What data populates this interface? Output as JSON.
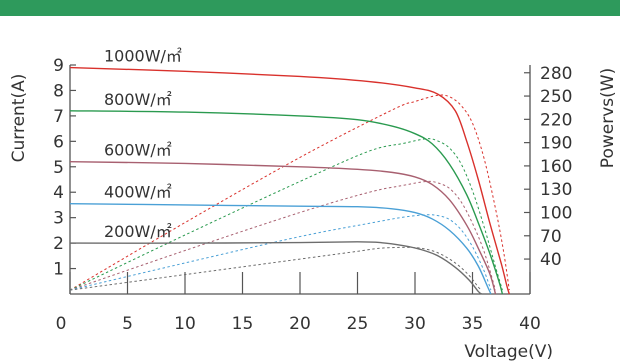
{
  "colors": {
    "banner": "#2e9a5c",
    "axis": "#555555"
  },
  "chart_data": {
    "type": "line",
    "xlabel": "Voltage(V)",
    "ylabel": "Current(A)",
    "y2label": "Powervs(W)",
    "xlim": [
      0,
      40
    ],
    "ylim": [
      0,
      9
    ],
    "y2lim": [
      -5,
      290
    ],
    "x_ticks": [
      "0",
      "5",
      "10",
      "15",
      "20",
      "25",
      "30",
      "35",
      "40"
    ],
    "y_ticks": [
      "1",
      "2",
      "3",
      "4",
      "5",
      "6",
      "7",
      "8",
      "9"
    ],
    "y2_ticks": [
      "40",
      "70",
      "100",
      "130",
      "160",
      "190",
      "220",
      "250",
      "280"
    ],
    "grid": false,
    "series": [
      {
        "name": "1000W/㎡",
        "color": "#d9312c",
        "current": [
          [
            0,
            8.9
          ],
          [
            10,
            8.75
          ],
          [
            20,
            8.55
          ],
          [
            26,
            8.35
          ],
          [
            30,
            8.1
          ],
          [
            32,
            7.85
          ],
          [
            33.5,
            7.2
          ],
          [
            34.5,
            6.0
          ],
          [
            35.5,
            4.5
          ],
          [
            36.5,
            2.8
          ],
          [
            37.5,
            1.2
          ],
          [
            38,
            0.3
          ],
          [
            38.2,
            0
          ]
        ],
        "power": [
          [
            0,
            0
          ],
          [
            10,
            87
          ],
          [
            20,
            171
          ],
          [
            28,
            232
          ],
          [
            30,
            243
          ],
          [
            32,
            251
          ],
          [
            33,
            249
          ],
          [
            34,
            238
          ],
          [
            35,
            215
          ],
          [
            36,
            170
          ],
          [
            37,
            105
          ],
          [
            37.7,
            50
          ],
          [
            38.2,
            0
          ]
        ]
      },
      {
        "name": "800W/㎡",
        "color": "#2a9a4f",
        "current": [
          [
            0,
            7.2
          ],
          [
            10,
            7.15
          ],
          [
            20,
            7.0
          ],
          [
            25,
            6.85
          ],
          [
            28,
            6.6
          ],
          [
            30,
            6.3
          ],
          [
            31.5,
            5.9
          ],
          [
            33,
            5.1
          ],
          [
            34.5,
            3.9
          ],
          [
            35.5,
            2.8
          ],
          [
            36.5,
            1.6
          ],
          [
            37.3,
            0.5
          ],
          [
            37.6,
            0
          ]
        ],
        "power": [
          [
            0,
            0
          ],
          [
            10,
            71
          ],
          [
            20,
            140
          ],
          [
            26,
            179
          ],
          [
            29,
            189
          ],
          [
            31,
            195
          ],
          [
            32,
            192
          ],
          [
            33,
            183
          ],
          [
            34,
            163
          ],
          [
            35,
            128
          ],
          [
            36,
            82
          ],
          [
            37,
            30
          ],
          [
            37.6,
            0
          ]
        ]
      },
      {
        "name": "600W/㎡",
        "color": "#a86070",
        "current": [
          [
            0,
            5.2
          ],
          [
            10,
            5.13
          ],
          [
            20,
            5.0
          ],
          [
            25,
            4.9
          ],
          [
            28,
            4.78
          ],
          [
            30,
            4.6
          ],
          [
            31.5,
            4.3
          ],
          [
            33,
            3.7
          ],
          [
            34.5,
            2.7
          ],
          [
            35.5,
            1.8
          ],
          [
            36.5,
            0.8
          ],
          [
            37,
            0
          ]
        ],
        "power": [
          [
            0,
            0
          ],
          [
            10,
            51
          ],
          [
            20,
            100
          ],
          [
            26,
            126
          ],
          [
            29,
            135
          ],
          [
            31,
            140
          ],
          [
            32,
            138
          ],
          [
            33,
            131
          ],
          [
            34,
            114
          ],
          [
            35,
            86
          ],
          [
            36,
            50
          ],
          [
            37,
            0
          ]
        ]
      },
      {
        "name": "400W/㎡",
        "color": "#4aa0d6",
        "current": [
          [
            0,
            3.55
          ],
          [
            10,
            3.5
          ],
          [
            20,
            3.45
          ],
          [
            25,
            3.43
          ],
          [
            28,
            3.35
          ],
          [
            30,
            3.2
          ],
          [
            31.5,
            2.95
          ],
          [
            33,
            2.5
          ],
          [
            34.5,
            1.8
          ],
          [
            35.5,
            1.1
          ],
          [
            36.3,
            0.3
          ],
          [
            36.6,
            0
          ]
        ],
        "power": [
          [
            0,
            0
          ],
          [
            10,
            35
          ],
          [
            20,
            69
          ],
          [
            26,
            86
          ],
          [
            29,
            94
          ],
          [
            31,
            97
          ],
          [
            32,
            96
          ],
          [
            33,
            91
          ],
          [
            34,
            78
          ],
          [
            35,
            56
          ],
          [
            36,
            25
          ],
          [
            36.6,
            0
          ]
        ]
      },
      {
        "name": "200W/㎡",
        "color": "#6d6d6d",
        "current": [
          [
            0,
            2.0
          ],
          [
            10,
            2.0
          ],
          [
            20,
            2.02
          ],
          [
            25,
            2.05
          ],
          [
            27,
            2.02
          ],
          [
            29,
            1.9
          ],
          [
            30.5,
            1.75
          ],
          [
            32,
            1.5
          ],
          [
            33.5,
            1.05
          ],
          [
            34.7,
            0.55
          ],
          [
            35.5,
            0.1
          ],
          [
            35.8,
            0
          ]
        ],
        "power": [
          [
            0,
            0
          ],
          [
            10,
            20
          ],
          [
            20,
            40
          ],
          [
            25,
            50
          ],
          [
            27,
            54
          ],
          [
            29,
            55
          ],
          [
            30.5,
            54
          ],
          [
            32,
            48
          ],
          [
            33.5,
            35
          ],
          [
            34.7,
            19
          ],
          [
            35.5,
            4
          ],
          [
            35.8,
            0
          ]
        ]
      }
    ]
  }
}
